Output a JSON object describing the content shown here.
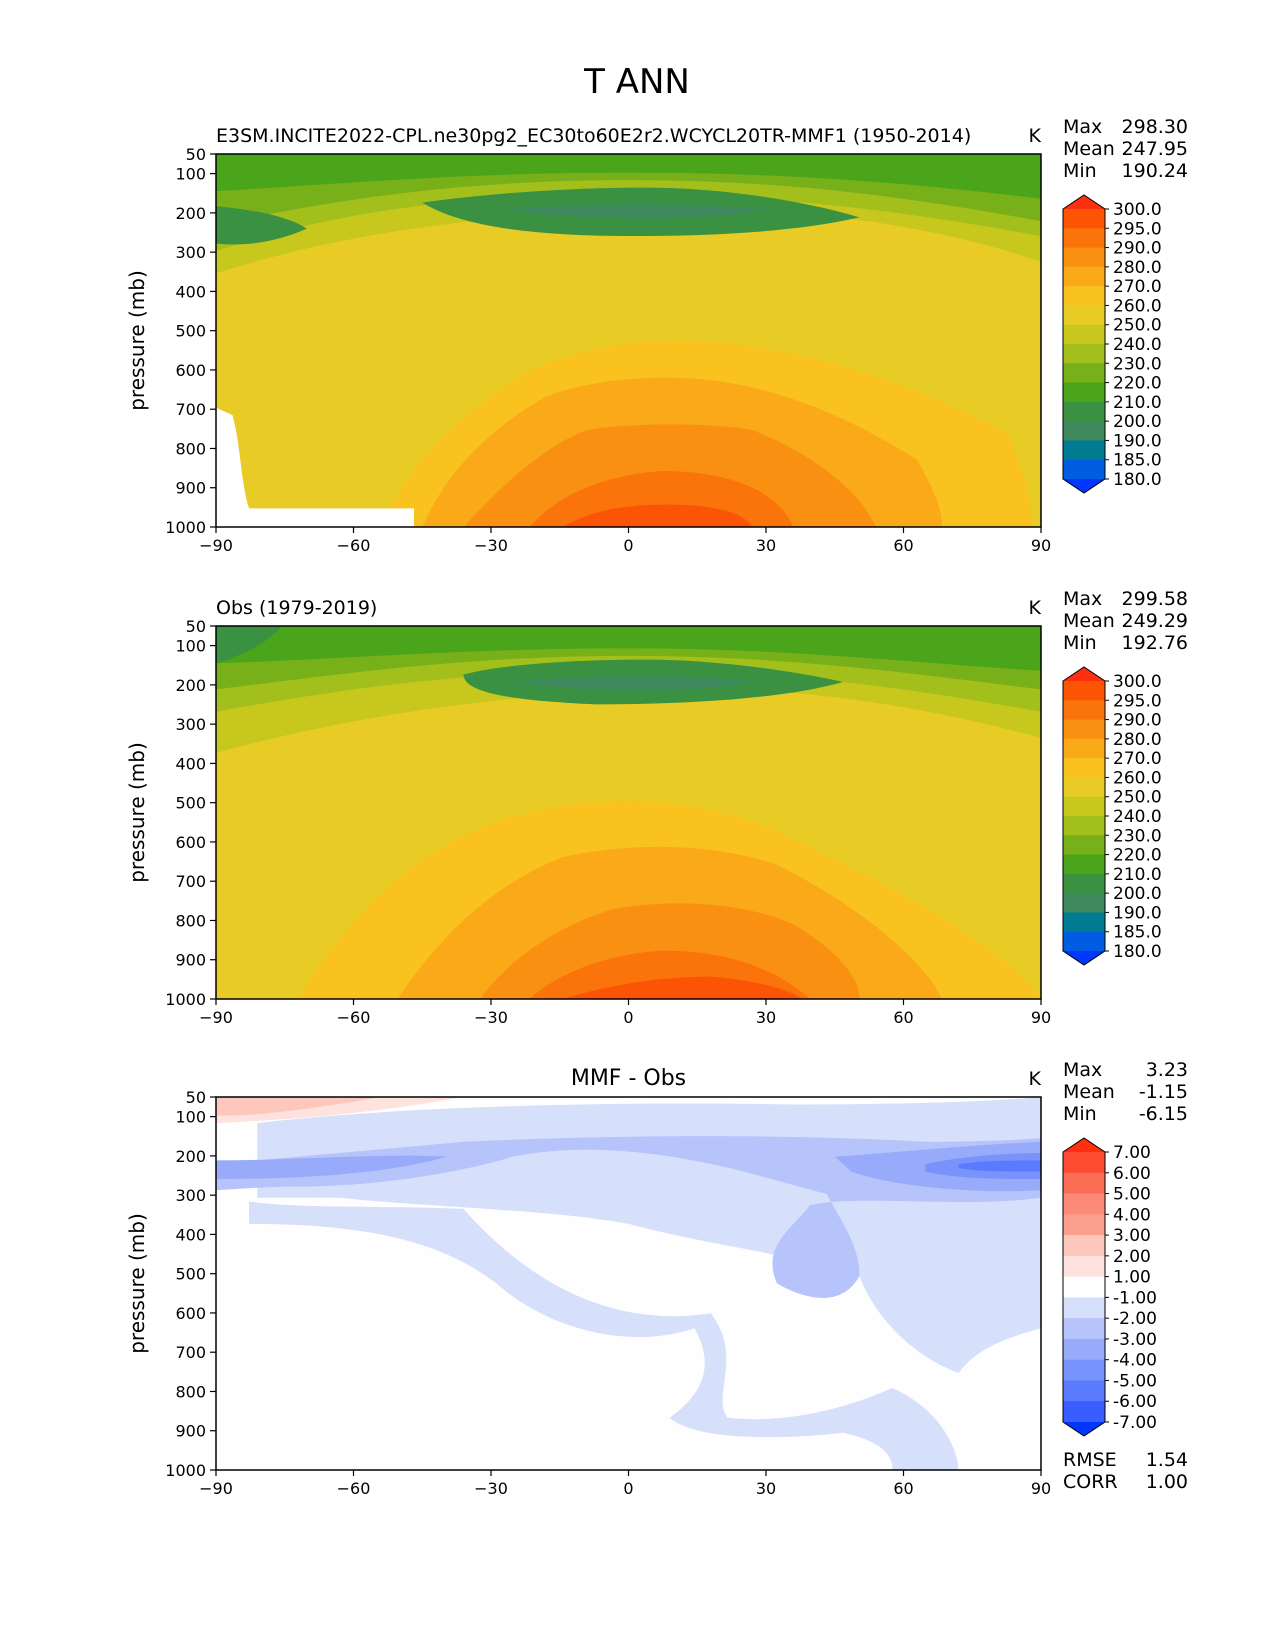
{
  "title": "T ANN",
  "colors": {
    "abs_levels": [
      "#0037ff",
      "#005ce0",
      "#007b91",
      "#3e8a5e",
      "#3a9142",
      "#4aa51a",
      "#78b01a",
      "#a3bf1c",
      "#c8c71e",
      "#e9cb25",
      "#fac21f",
      "#faa919",
      "#f99012",
      "#fb730b",
      "#fc5405",
      "#ff3010"
    ],
    "diff_levels": [
      "#0037ff",
      "#3a5dff",
      "#5b7bff",
      "#7993fc",
      "#97abfa",
      "#b6c4fb",
      "#d7e0fb",
      "#fefefe",
      "#fde2dd",
      "#fdc7bc",
      "#fd9f8f",
      "#fd8a76",
      "#fc6d56",
      "#fc4d33",
      "#ff2f10"
    ]
  },
  "panels": [
    {
      "id": "model",
      "title": "",
      "left_label": "E3SM.INCITE2022-CPL.ne30pg2_EC30to60E2r2.WCYCL20TR-MMF1 (1950-2014)",
      "units": "K",
      "stats": [
        {
          "label": "Max",
          "value": "298.30"
        },
        {
          "label": "Mean",
          "value": "247.95"
        },
        {
          "label": "Min",
          "value": "190.24"
        }
      ],
      "colorbar_labels": [
        "300.0",
        "295.0",
        "290.0",
        "280.0",
        "270.0",
        "260.0",
        "250.0",
        "240.0",
        "230.0",
        "220.0",
        "210.0",
        "200.0",
        "190.0",
        "185.0",
        "180.0"
      ],
      "extra_stats": []
    },
    {
      "id": "obs",
      "title": "",
      "left_label": "Obs (1979-2019)",
      "units": "K",
      "stats": [
        {
          "label": "Max",
          "value": "299.58"
        },
        {
          "label": "Mean",
          "value": "249.29"
        },
        {
          "label": "Min",
          "value": "192.76"
        }
      ],
      "colorbar_labels": [
        "300.0",
        "295.0",
        "290.0",
        "280.0",
        "270.0",
        "260.0",
        "250.0",
        "240.0",
        "230.0",
        "220.0",
        "210.0",
        "200.0",
        "190.0",
        "185.0",
        "180.0"
      ],
      "extra_stats": []
    },
    {
      "id": "diff",
      "title": "MMF - Obs",
      "left_label": "",
      "units": "K",
      "stats": [
        {
          "label": "Max",
          "value": "3.23"
        },
        {
          "label": "Mean",
          "value": "-1.15"
        },
        {
          "label": "Min",
          "value": "-6.15"
        }
      ],
      "colorbar_labels": [
        "7.00",
        "6.00",
        "5.00",
        "4.00",
        "3.00",
        "2.00",
        "1.00",
        "-1.00",
        "-2.00",
        "-3.00",
        "-4.00",
        "-5.00",
        "-6.00",
        "-7.00"
      ],
      "extra_stats": [
        {
          "label": "RMSE",
          "value": "1.54"
        },
        {
          "label": "CORR",
          "value": "1.00"
        }
      ]
    }
  ],
  "chart_data": [
    {
      "type": "contourf",
      "panel": "model",
      "xlabel": "",
      "ylabel": "pressure (mb)",
      "xlim": [
        -90,
        90
      ],
      "ylim": [
        1000,
        50
      ],
      "xticks": [
        -90,
        -60,
        -30,
        0,
        30,
        60,
        90
      ],
      "xtick_labels": [
        "−90",
        "−60",
        "−30",
        "0",
        "30",
        "60",
        "90"
      ],
      "yticks": [
        50,
        100,
        200,
        300,
        400,
        500,
        600,
        700,
        800,
        900,
        1000
      ],
      "ytick_labels": [
        "50",
        "100",
        "200",
        "300",
        "400",
        "500",
        "600",
        "700",
        "800",
        "900",
        "1000"
      ],
      "levels": [
        180,
        185,
        190,
        200,
        210,
        220,
        230,
        240,
        250,
        260,
        270,
        280,
        290,
        295,
        300
      ],
      "units": "K",
      "max": 298.3,
      "mean": 247.95,
      "min": 190.24
    },
    {
      "type": "contourf",
      "panel": "obs",
      "xlabel": "",
      "ylabel": "pressure (mb)",
      "xlim": [
        -90,
        90
      ],
      "ylim": [
        1000,
        50
      ],
      "xticks": [
        -90,
        -60,
        -30,
        0,
        30,
        60,
        90
      ],
      "xtick_labels": [
        "−90",
        "−60",
        "−30",
        "0",
        "30",
        "60",
        "90"
      ],
      "yticks": [
        50,
        100,
        200,
        300,
        400,
        500,
        600,
        700,
        800,
        900,
        1000
      ],
      "ytick_labels": [
        "50",
        "100",
        "200",
        "300",
        "400",
        "500",
        "600",
        "700",
        "800",
        "900",
        "1000"
      ],
      "levels": [
        180,
        185,
        190,
        200,
        210,
        220,
        230,
        240,
        250,
        260,
        270,
        280,
        290,
        295,
        300
      ],
      "units": "K",
      "max": 299.58,
      "mean": 249.29,
      "min": 192.76
    },
    {
      "type": "contourf",
      "panel": "diff",
      "title": "MMF - Obs",
      "xlabel": "",
      "ylabel": "pressure (mb)",
      "xlim": [
        -90,
        90
      ],
      "ylim": [
        1000,
        50
      ],
      "xticks": [
        -90,
        -60,
        -30,
        0,
        30,
        60,
        90
      ],
      "xtick_labels": [
        "−90",
        "−60",
        "−30",
        "0",
        "30",
        "60",
        "90"
      ],
      "yticks": [
        50,
        100,
        200,
        300,
        400,
        500,
        600,
        700,
        800,
        900,
        1000
      ],
      "ytick_labels": [
        "50",
        "100",
        "200",
        "300",
        "400",
        "500",
        "600",
        "700",
        "800",
        "900",
        "1000"
      ],
      "levels": [
        -7,
        -6,
        -5,
        -4,
        -3,
        -2,
        -1,
        1,
        2,
        3,
        4,
        5,
        6,
        7
      ],
      "units": "K",
      "max": 3.23,
      "mean": -1.15,
      "min": -6.15,
      "rmse": 1.54,
      "corr": 1.0
    }
  ]
}
